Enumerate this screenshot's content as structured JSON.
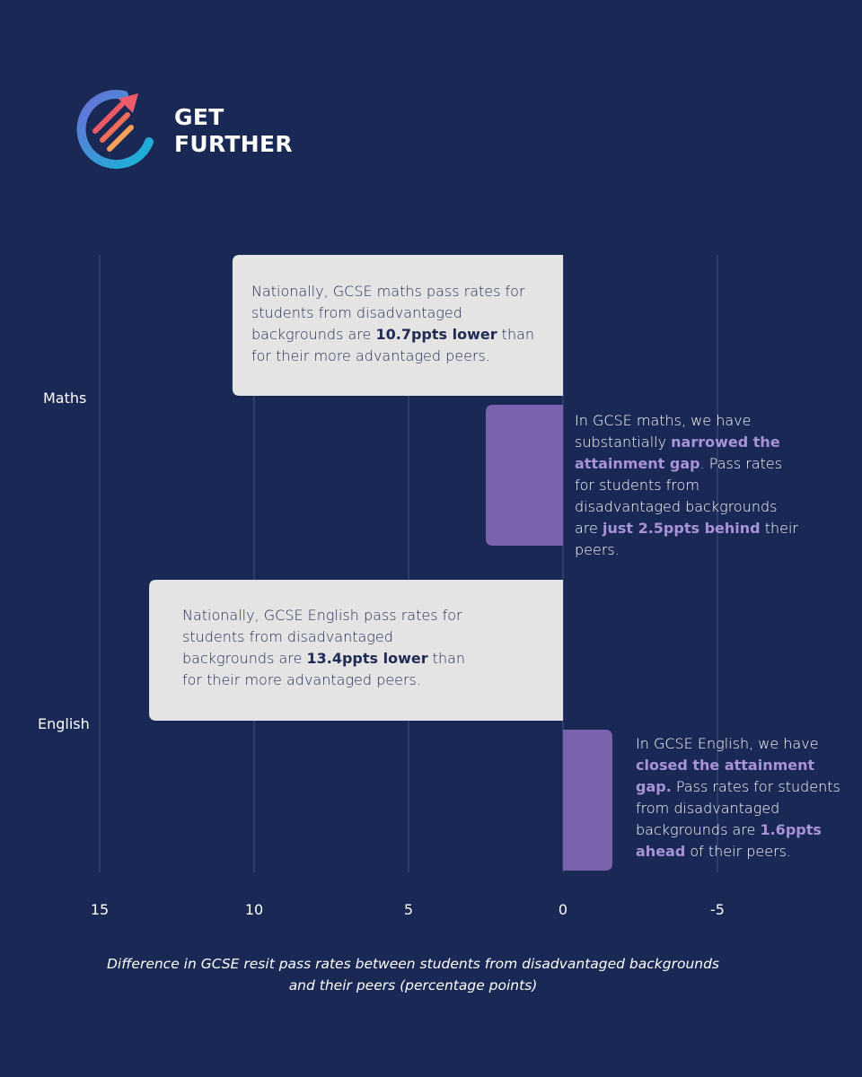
{
  "brand": {
    "line1": "GET",
    "line2": "FURTHER"
  },
  "chart_data": {
    "type": "bar",
    "orientation": "horizontal",
    "categories": [
      "Maths",
      "English"
    ],
    "series": [
      {
        "name": "Nationally",
        "values": [
          10.7,
          13.4
        ],
        "color": "#e4e4e4"
      },
      {
        "name": "Get Further",
        "values": [
          2.5,
          -1.6
        ],
        "color": "#7b62ad"
      }
    ],
    "xlim": [
      16,
      -5.6
    ],
    "xticks": [
      15,
      10,
      5,
      0,
      -5
    ],
    "xlabel_lines": [
      "Difference in GCSE resit pass rates between students from disadvantaged backgrounds",
      "and their peers (percentage points)"
    ],
    "grid": true
  },
  "callouts": {
    "maths_national": {
      "a": "Nationally, GCSE maths pass rates for students from disadvantaged backgrounds are ",
      "b": "10.7ppts lower",
      "c": " than for their more advantaged peers."
    },
    "maths_gf": {
      "a": "In GCSE maths, we have substantially ",
      "b": "narrowed the attainment gap",
      "c": ". Pass rates for students from disadvantaged backgrounds are ",
      "d": "just 2.5ppts behind",
      "e": " their peers."
    },
    "english_national": {
      "a": "Nationally, GCSE English pass rates for students from disadvantaged backgrounds are ",
      "b": "13.4ppts lower",
      "c": " than for their more advantaged peers."
    },
    "english_gf": {
      "a": "In GCSE English, we have ",
      "b": "closed the attainment gap.",
      "c": " Pass rates for students from disadvantaged backgrounds are ",
      "d": "1.6ppts ahead",
      "e": " of their peers."
    }
  }
}
